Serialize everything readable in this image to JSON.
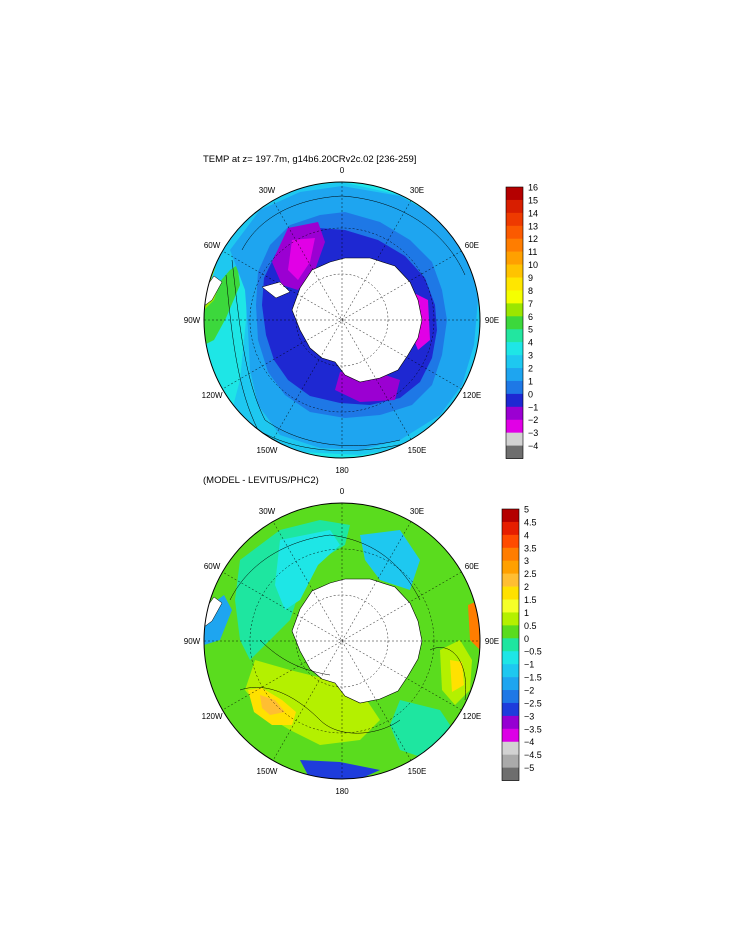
{
  "panels": [
    {
      "title": "TEMP at z= 197.7m, g14b6.20CRv2c.02 [236-259]",
      "lon_labels": [
        "0",
        "30E",
        "60E",
        "90E",
        "120E",
        "150E",
        "180",
        "150W",
        "120W",
        "90W",
        "60W",
        "30W"
      ],
      "colorbar": {
        "labels": [
          "16",
          "15",
          "14",
          "13",
          "12",
          "11",
          "10",
          "9",
          "8",
          "7",
          "6",
          "5",
          "4",
          "3",
          "2",
          "1",
          "0",
          "−1",
          "−2",
          "−3",
          "−4"
        ],
        "colors": [
          "#b40000",
          "#d81e00",
          "#ee3a00",
          "#fb5a00",
          "#ff7d00",
          "#ffa000",
          "#ffc300",
          "#ffe600",
          "#f5ff00",
          "#9be600",
          "#3cd83c",
          "#22e6a0",
          "#1ee6e6",
          "#1ec8f0",
          "#1ea5f0",
          "#1e78e6",
          "#1e28d2",
          "#9b00d2",
          "#e100e6",
          "#d2d2d2",
          "#6e6e6e"
        ]
      }
    },
    {
      "title": "(MODEL - LEVITUS/PHC2)",
      "lon_labels": [
        "0",
        "30E",
        "60E",
        "90E",
        "120E",
        "150E",
        "180",
        "150W",
        "120W",
        "90W",
        "60W",
        "30W"
      ],
      "colorbar": {
        "labels": [
          "5",
          "4.5",
          "4",
          "3.5",
          "3",
          "2.5",
          "2",
          "1.5",
          "1",
          "0.5",
          "0",
          "−0.5",
          "−1",
          "−1.5",
          "−2",
          "−2.5",
          "−3",
          "−3.5",
          "−4",
          "−4.5",
          "−5"
        ],
        "colors": [
          "#b40000",
          "#e61e00",
          "#ff4b00",
          "#ff7d00",
          "#ffa000",
          "#ffbe32",
          "#ffe100",
          "#f5ff28",
          "#b4f000",
          "#5adc1e",
          "#1ee6a0",
          "#1ee6e6",
          "#1ec8f0",
          "#1ea5f0",
          "#1e78e6",
          "#1e3cdc",
          "#9600d2",
          "#dc00e6",
          "#d2d2d2",
          "#aaaaaa",
          "#6e6e6e"
        ]
      }
    }
  ]
}
